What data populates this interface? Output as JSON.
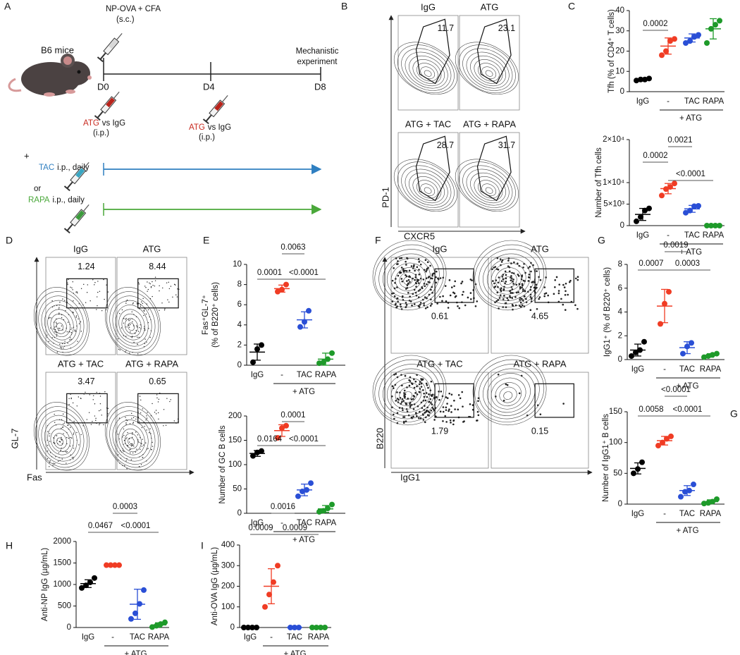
{
  "figure": {
    "schematic": {
      "panel_label": "A",
      "mouse_label": "B6 mice",
      "immunization": "NP-OVA + CFA",
      "immunization_route": "(s.c.)",
      "endpoint": [
        "Mechanistic",
        "experiment"
      ],
      "days": [
        "D0",
        "D4",
        "D8"
      ],
      "injections": [
        {
          "drug": "ATG",
          "color": "#c8281e",
          "rest": "vs IgG",
          "route": "(i.p.)"
        },
        {
          "drug": "ATG",
          "color": "#c8281e",
          "rest": "vs IgG",
          "route": "(i.p.)"
        }
      ],
      "plus": "+",
      "or": "or",
      "treatments": [
        {
          "drug": "TAC",
          "color": "#2f7fc1",
          "rest": "i.p., daily"
        },
        {
          "drug": "RAPA",
          "color": "#4aa83a",
          "rest": "i.p., daily"
        }
      ]
    },
    "flow_panels": [
      {
        "panel_label": "B",
        "y_label": "PD-1",
        "x_label": "CXCR5",
        "plots": [
          {
            "title": "IgG",
            "color": "#111111",
            "value": 11.7
          },
          {
            "title": "ATG",
            "color": "#d62c20",
            "value": 23.1
          },
          {
            "title": "ATG + TAC",
            "color": "#2f86c4",
            "value": 28.7
          },
          {
            "title": "ATG + RAPA",
            "color": "#2c9c45",
            "value": 31.7
          }
        ]
      },
      {
        "panel_label": "D",
        "y_label": "GL-7",
        "x_label": "Fas",
        "plots": [
          {
            "title": "IgG",
            "color": "#111111",
            "value": 1.24
          },
          {
            "title": "ATG",
            "color": "#d62c20",
            "value": 8.44
          },
          {
            "title": "ATG + TAC",
            "color": "#2f86c4",
            "value": 3.47
          },
          {
            "title": "ATG + RAPA",
            "color": "#2c9c45",
            "value": 0.65
          }
        ]
      },
      {
        "panel_label": "F",
        "y_label": "B220",
        "x_label": "IgG1",
        "plots": [
          {
            "title": "IgG",
            "color": "#111111",
            "value": 0.61
          },
          {
            "title": "ATG",
            "color": "#d62c20",
            "value": 4.65
          },
          {
            "title": "ATG + TAC",
            "color": "#2f86c4",
            "value": 1.79
          },
          {
            "title": "ATG + RAPA",
            "color": "#2c9c45",
            "value": 0.15
          }
        ]
      }
    ]
  },
  "chart_data": [
    {
      "type": "dot",
      "panel_label": "C",
      "y_label": "Tfh (% of CD4⁺ T cells)",
      "categories": [
        "IgG",
        "-",
        "TAC",
        "RAPA"
      ],
      "group_label": "+ ATG",
      "ylim": [
        0,
        40
      ],
      "yticks": [
        0,
        10,
        20,
        30,
        40
      ],
      "groups": [
        {
          "color": "#000000",
          "points": [
            5.5,
            6,
            6,
            6.5
          ],
          "mean": 6,
          "sd": 0.5
        },
        {
          "color": "#f03c24",
          "points": [
            18,
            20,
            25,
            26
          ],
          "mean": 22.5,
          "sd": 4
        },
        {
          "color": "#2a4fd6",
          "points": [
            24,
            25,
            27,
            28
          ],
          "mean": 26.5,
          "sd": 2
        },
        {
          "color": "#1e9a2a",
          "points": [
            24,
            31,
            33,
            35
          ],
          "mean": 31,
          "sd": 5
        }
      ],
      "comparisons": [
        {
          "label": "0.0002",
          "from": 0,
          "to": 1
        }
      ]
    },
    {
      "type": "dot",
      "y_label": "Number of Tfh cells",
      "categories": [
        "IgG",
        "-",
        "TAC",
        "RAPA"
      ],
      "group_label": "+ ATG",
      "ylim": [
        0,
        20000
      ],
      "yticks": [
        0,
        {
          "value": 5000,
          "label": "5×10³"
        },
        {
          "value": 10000,
          "label": "1×10⁴"
        },
        {
          "value": 20000,
          "label": "2×10⁴"
        }
      ],
      "groups": [
        {
          "color": "#000000",
          "points": [
            1000,
            2000,
            3500,
            4000
          ],
          "mean": 2600,
          "sd": 1400
        },
        {
          "color": "#f03c24",
          "points": [
            7000,
            8500,
            9000,
            9800
          ],
          "mean": 8600,
          "sd": 1200
        },
        {
          "color": "#2a4fd6",
          "points": [
            3000,
            3500,
            4500,
            4600
          ],
          "mean": 3900,
          "sd": 800
        },
        {
          "color": "#1e9a2a",
          "points": [
            0,
            0,
            0,
            0
          ],
          "mean": 0,
          "sd": 0
        }
      ],
      "comparisons": [
        {
          "label": "0.0002",
          "from": 0,
          "to": 1
        },
        {
          "label": "0.0021",
          "from": 1,
          "to": 2
        },
        {
          "label": "<0.0001",
          "from": 1,
          "to": 3
        }
      ]
    },
    {
      "type": "dot",
      "panel_label": "E",
      "y_label": [
        "Fas⁺GL-7⁺",
        "(% of B220⁺ cells)"
      ],
      "categories": [
        "IgG",
        "-",
        "TAC",
        "RAPA"
      ],
      "group_label": "+ ATG",
      "ylim": [
        0,
        10
      ],
      "yticks": [
        0,
        2,
        4,
        6,
        8,
        10
      ],
      "groups": [
        {
          "color": "#000000",
          "points": [
            0.3,
            1.6,
            2
          ],
          "mean": 1.3,
          "sd": 0.8
        },
        {
          "color": "#f03c24",
          "points": [
            7.3,
            7.5,
            8
          ],
          "mean": 7.6,
          "sd": 0.35
        },
        {
          "color": "#2a4fd6",
          "points": [
            3.8,
            4.3,
            5.4
          ],
          "mean": 4.5,
          "sd": 0.8
        },
        {
          "color": "#1e9a2a",
          "points": [
            0.2,
            0.3,
            0.6,
            1.2
          ],
          "mean": 0.6,
          "sd": 0.6
        }
      ],
      "comparisons": [
        {
          "label": "0.0001",
          "from": 0,
          "to": 1
        },
        {
          "label": "0.0063",
          "from": 1,
          "to": 2
        },
        {
          "label": "<0.0001",
          "from": 1,
          "to": 3
        }
      ]
    },
    {
      "type": "dot",
      "y_label": "Number of GC B cells",
      "categories": [
        "IgG",
        "-",
        "TAC",
        "RAPA"
      ],
      "group_label": "+ ATG",
      "ylim": [
        0,
        200
      ],
      "yticks": [
        0,
        50,
        100,
        150,
        200
      ],
      "groups": [
        {
          "color": "#000000",
          "points": [
            118,
            125,
            128
          ],
          "mean": 123,
          "sd": 6
        },
        {
          "color": "#f03c24",
          "points": [
            155,
            175,
            180
          ],
          "mean": 170,
          "sd": 12
        },
        {
          "color": "#2a4fd6",
          "points": [
            35,
            45,
            48,
            62
          ],
          "mean": 48,
          "sd": 12
        },
        {
          "color": "#1e9a2a",
          "points": [
            3,
            5,
            10,
            18
          ],
          "mean": 9,
          "sd": 7
        }
      ],
      "comparisons": [
        {
          "label": "0.0164",
          "from": 0,
          "to": 1
        },
        {
          "label": "0.0001",
          "from": 1,
          "to": 2
        },
        {
          "label": "<0.0001",
          "from": 1,
          "to": 3
        }
      ]
    },
    {
      "type": "dot",
      "panel_label": "G",
      "y_label": "IgG1⁺ (% of B220⁺ cells)",
      "categories": [
        "IgG",
        "-",
        "TAC",
        "RAPA"
      ],
      "group_label": "+ ATG",
      "ylim": [
        0,
        8
      ],
      "yticks": [
        0,
        2,
        4,
        6,
        8
      ],
      "groups": [
        {
          "color": "#000000",
          "points": [
            0.3,
            0.6,
            0.8,
            1.5
          ],
          "mean": 0.8,
          "sd": 0.5
        },
        {
          "color": "#f03c24",
          "points": [
            3,
            4.7,
            5.7
          ],
          "mean": 4.5,
          "sd": 1.4
        },
        {
          "color": "#2a4fd6",
          "points": [
            0.5,
            1.1,
            1.4
          ],
          "mean": 1,
          "sd": 0.5
        },
        {
          "color": "#1e9a2a",
          "points": [
            0.2,
            0.3,
            0.4,
            0.5
          ],
          "mean": 0.35,
          "sd": 0.15
        }
      ],
      "comparisons": [
        {
          "label": "0.0007",
          "from": 0,
          "to": 1
        },
        {
          "label": "0.0019",
          "from": 1,
          "to": 2
        },
        {
          "label": "0.0003",
          "from": 1,
          "to": 3
        }
      ]
    },
    {
      "type": "dot",
      "panel_label": "G",
      "y_label": "Number of IgG1⁺ B cells",
      "categories": [
        "IgG",
        "-",
        "TAC",
        "RAPA"
      ],
      "group_label": "+ ATG",
      "ylim": [
        0,
        150
      ],
      "yticks": [
        0,
        50,
        100,
        150
      ],
      "groups": [
        {
          "color": "#000000",
          "points": [
            50,
            57,
            68
          ],
          "mean": 58,
          "sd": 9
        },
        {
          "color": "#f03c24",
          "points": [
            95,
            100,
            106,
            110
          ],
          "mean": 103,
          "sd": 7
        },
        {
          "color": "#2a4fd6",
          "points": [
            12,
            20,
            22,
            32
          ],
          "mean": 22,
          "sd": 8
        },
        {
          "color": "#1e9a2a",
          "points": [
            1,
            2,
            4,
            8
          ],
          "mean": 4,
          "sd": 3
        }
      ],
      "comparisons": [
        {
          "label": "0.0058",
          "from": 0,
          "to": 1
        },
        {
          "label": "<0.0001",
          "from": 1,
          "to": 2
        },
        {
          "label": "<0.0001",
          "from": 1,
          "to": 3
        }
      ]
    },
    {
      "type": "dot",
      "panel_label": "H",
      "y_label": "Anti-NP IgG  (µg/mL)",
      "categories": [
        "IgG",
        "-",
        "TAC",
        "RAPA"
      ],
      "group_label": "+ ATG",
      "ylim": [
        0,
        2000
      ],
      "yticks": [
        0,
        500,
        1000,
        1500,
        2000
      ],
      "groups": [
        {
          "color": "#000000",
          "points": [
            920,
            980,
            1050,
            1150
          ],
          "mean": 1020,
          "sd": 90
        },
        {
          "color": "#f03c24",
          "points": [
            1450,
            1450,
            1450,
            1450
          ],
          "mean": 1450,
          "sd": 0
        },
        {
          "color": "#2a4fd6",
          "points": [
            200,
            330,
            550,
            870
          ],
          "mean": 540,
          "sd": 350
        },
        {
          "color": "#1e9a2a",
          "points": [
            10,
            40,
            80,
            120
          ],
          "mean": 60,
          "sd": 50
        }
      ],
      "comparisons": [
        {
          "label": "0.0467",
          "from": 0,
          "to": 1
        },
        {
          "label": "0.0003",
          "from": 1,
          "to": 2
        },
        {
          "label": "<0.0001",
          "from": 1,
          "to": 3
        }
      ]
    },
    {
      "type": "dot",
      "panel_label": "I",
      "y_label": "Anti-OVA IgG  (µg/mL)",
      "categories": [
        "IgG",
        "-",
        "TAC",
        "RAPA"
      ],
      "group_label": "+ ATG",
      "ylim": [
        0,
        400
      ],
      "yticks": [
        0,
        100,
        200,
        300,
        400
      ],
      "groups": [
        {
          "color": "#000000",
          "points": [
            0,
            0,
            0,
            0
          ],
          "mean": 0,
          "sd": 0
        },
        {
          "color": "#f03c24",
          "points": [
            100,
            160,
            220,
            300
          ],
          "mean": 200,
          "sd": 85
        },
        {
          "color": "#2a4fd6",
          "points": [
            0,
            0,
            0
          ],
          "mean": 0,
          "sd": 0
        },
        {
          "color": "#1e9a2a",
          "points": [
            0,
            0,
            0,
            0
          ],
          "mean": 0,
          "sd": 0
        }
      ],
      "comparisons": [
        {
          "label": "0.0009",
          "from": 0,
          "to": 1
        },
        {
          "label": "0.0016",
          "from": 1,
          "to": 2
        },
        {
          "label": "0.0009",
          "from": 1,
          "to": 3
        }
      ]
    }
  ]
}
